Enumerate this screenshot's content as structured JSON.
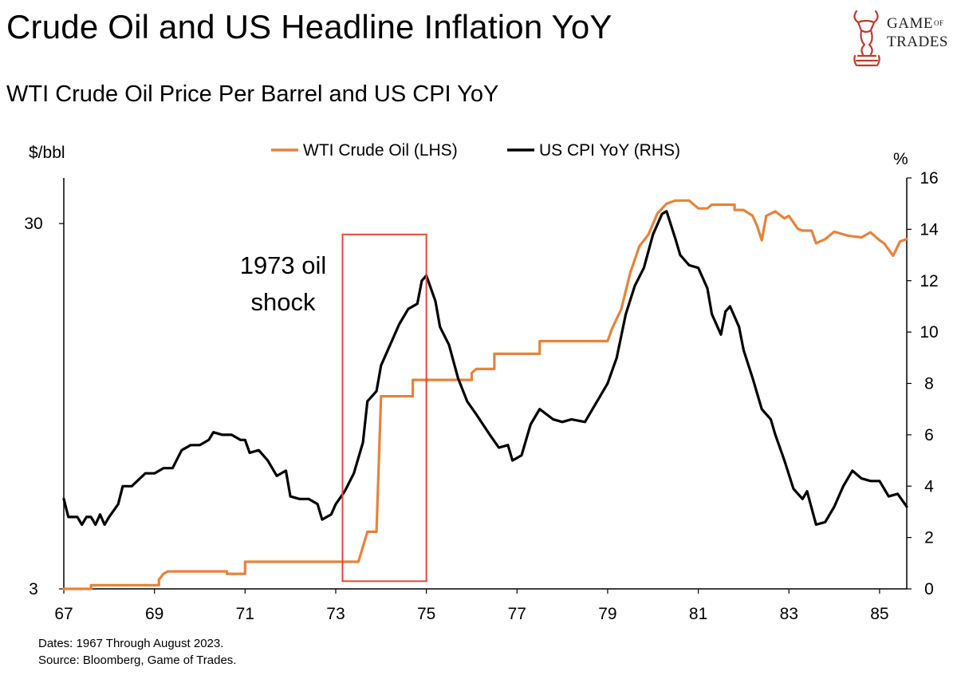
{
  "header": {
    "title": "Crude Oil and US Headline Inflation YoY",
    "subtitle": "WTI Crude Oil Price Per Barrel and US CPI YoY"
  },
  "brand": {
    "line1": "GAME",
    "of": "OF",
    "line2": "TRADES",
    "color": "#c0392b"
  },
  "footer": {
    "dates": "Dates: 1967 Through August 2023.",
    "source": "Source: Bloomberg, Game of Trades."
  },
  "chart_data": {
    "type": "line",
    "title": "Crude Oil and US Headline Inflation YoY",
    "subtitle": "WTI Crude Oil Price Per Barrel and US CPI YoY",
    "y_left_unit": "$/bbl",
    "y_right_unit": "%",
    "x_range": [
      1967,
      1985.6
    ],
    "x_ticks": [
      "67",
      "69",
      "71",
      "73",
      "75",
      "77",
      "79",
      "81",
      "83",
      "85"
    ],
    "y_left_range": [
      3,
      40
    ],
    "y_left_scale": "log",
    "y_left_ticks": [
      3,
      30
    ],
    "y_right_range": [
      0,
      16
    ],
    "y_right_ticks": [
      0,
      2,
      4,
      6,
      8,
      10,
      12,
      14,
      16
    ],
    "legend_placement": "top-center",
    "grid": false,
    "annotation": {
      "text_lines": [
        "1973 oil",
        "shock"
      ],
      "box_x": [
        1973.15,
        1975.0
      ],
      "box_right_axis_y": [
        0.3,
        13.8
      ],
      "color": "#e8463a"
    },
    "series": [
      {
        "name": "WTI Crude Oil (LHS)",
        "axis": "left",
        "color": "#e8823a",
        "points": [
          [
            1967.0,
            3.0
          ],
          [
            1967.6,
            3.0
          ],
          [
            1967.6,
            3.07
          ],
          [
            1968.3,
            3.07
          ],
          [
            1969.1,
            3.07
          ],
          [
            1969.1,
            3.18
          ],
          [
            1969.2,
            3.3
          ],
          [
            1969.3,
            3.35
          ],
          [
            1970.0,
            3.35
          ],
          [
            1970.6,
            3.35
          ],
          [
            1970.6,
            3.3
          ],
          [
            1971.0,
            3.3
          ],
          [
            1971.0,
            3.56
          ],
          [
            1971.5,
            3.56
          ],
          [
            1972.0,
            3.56
          ],
          [
            1972.5,
            3.56
          ],
          [
            1973.0,
            3.56
          ],
          [
            1973.5,
            3.56
          ],
          [
            1973.7,
            4.3
          ],
          [
            1973.9,
            4.3
          ],
          [
            1974.0,
            10.1
          ],
          [
            1974.7,
            10.1
          ],
          [
            1974.7,
            11.2
          ],
          [
            1975.5,
            11.2
          ],
          [
            1976.0,
            11.2
          ],
          [
            1976.0,
            11.7
          ],
          [
            1976.1,
            12.0
          ],
          [
            1976.5,
            12.0
          ],
          [
            1976.5,
            13.2
          ],
          [
            1977.5,
            13.2
          ],
          [
            1977.5,
            14.3
          ],
          [
            1978.3,
            14.3
          ],
          [
            1979.0,
            14.3
          ],
          [
            1979.1,
            15.5
          ],
          [
            1979.3,
            17.5
          ],
          [
            1979.5,
            22.0
          ],
          [
            1979.7,
            26.0
          ],
          [
            1979.9,
            28.0
          ],
          [
            1980.1,
            32.0
          ],
          [
            1980.3,
            34.0
          ],
          [
            1980.5,
            34.7
          ],
          [
            1980.8,
            34.7
          ],
          [
            1981.0,
            33.0
          ],
          [
            1981.2,
            33.0
          ],
          [
            1981.3,
            33.8
          ],
          [
            1981.5,
            33.8
          ],
          [
            1981.8,
            33.8
          ],
          [
            1981.8,
            32.7
          ],
          [
            1982.0,
            32.7
          ],
          [
            1982.2,
            31.5
          ],
          [
            1982.3,
            29.5
          ],
          [
            1982.4,
            27.0
          ],
          [
            1982.5,
            31.5
          ],
          [
            1982.7,
            32.4
          ],
          [
            1982.9,
            31.0
          ],
          [
            1983.0,
            31.5
          ],
          [
            1983.2,
            29.0
          ],
          [
            1983.3,
            28.7
          ],
          [
            1983.5,
            28.7
          ],
          [
            1983.6,
            26.5
          ],
          [
            1983.8,
            27.2
          ],
          [
            1984.0,
            28.5
          ],
          [
            1984.3,
            27.8
          ],
          [
            1984.6,
            27.5
          ],
          [
            1984.8,
            28.4
          ],
          [
            1985.0,
            27.0
          ],
          [
            1985.1,
            26.5
          ],
          [
            1985.3,
            24.5
          ],
          [
            1985.45,
            26.8
          ],
          [
            1985.6,
            27.2
          ]
        ]
      },
      {
        "name": "US CPI YoY (RHS)",
        "axis": "right",
        "color": "#000000",
        "points": [
          [
            1967.0,
            3.5
          ],
          [
            1967.1,
            2.8
          ],
          [
            1967.3,
            2.8
          ],
          [
            1967.4,
            2.5
          ],
          [
            1967.5,
            2.8
          ],
          [
            1967.6,
            2.8
          ],
          [
            1967.7,
            2.5
          ],
          [
            1967.8,
            2.9
          ],
          [
            1967.9,
            2.5
          ],
          [
            1968.0,
            2.8
          ],
          [
            1968.2,
            3.3
          ],
          [
            1968.3,
            4.0
          ],
          [
            1968.5,
            4.0
          ],
          [
            1968.8,
            4.5
          ],
          [
            1969.0,
            4.5
          ],
          [
            1969.2,
            4.7
          ],
          [
            1969.4,
            4.7
          ],
          [
            1969.6,
            5.4
          ],
          [
            1969.8,
            5.6
          ],
          [
            1970.0,
            5.6
          ],
          [
            1970.2,
            5.8
          ],
          [
            1970.3,
            6.1
          ],
          [
            1970.5,
            6.0
          ],
          [
            1970.7,
            6.0
          ],
          [
            1970.9,
            5.8
          ],
          [
            1971.0,
            5.8
          ],
          [
            1971.1,
            5.3
          ],
          [
            1971.3,
            5.4
          ],
          [
            1971.5,
            5.0
          ],
          [
            1971.7,
            4.4
          ],
          [
            1971.9,
            4.6
          ],
          [
            1972.0,
            3.6
          ],
          [
            1972.2,
            3.5
          ],
          [
            1972.4,
            3.5
          ],
          [
            1972.6,
            3.3
          ],
          [
            1972.7,
            2.7
          ],
          [
            1972.9,
            2.9
          ],
          [
            1973.0,
            3.3
          ],
          [
            1973.2,
            3.8
          ],
          [
            1973.4,
            4.5
          ],
          [
            1973.6,
            5.7
          ],
          [
            1973.7,
            7.3
          ],
          [
            1973.9,
            7.7
          ],
          [
            1974.0,
            8.7
          ],
          [
            1974.2,
            9.5
          ],
          [
            1974.4,
            10.3
          ],
          [
            1974.6,
            10.9
          ],
          [
            1974.8,
            11.1
          ],
          [
            1974.9,
            12.0
          ],
          [
            1975.0,
            12.2
          ],
          [
            1975.2,
            11.2
          ],
          [
            1975.3,
            10.2
          ],
          [
            1975.5,
            9.5
          ],
          [
            1975.7,
            8.2
          ],
          [
            1975.9,
            7.3
          ],
          [
            1976.1,
            6.8
          ],
          [
            1976.4,
            6.0
          ],
          [
            1976.6,
            5.5
          ],
          [
            1976.8,
            5.6
          ],
          [
            1976.9,
            5.0
          ],
          [
            1977.1,
            5.2
          ],
          [
            1977.3,
            6.4
          ],
          [
            1977.5,
            7.0
          ],
          [
            1977.8,
            6.6
          ],
          [
            1978.0,
            6.5
          ],
          [
            1978.2,
            6.6
          ],
          [
            1978.5,
            6.5
          ],
          [
            1978.8,
            7.4
          ],
          [
            1979.0,
            8.0
          ],
          [
            1979.2,
            9.0
          ],
          [
            1979.4,
            10.7
          ],
          [
            1979.6,
            11.8
          ],
          [
            1979.8,
            12.5
          ],
          [
            1980.0,
            13.8
          ],
          [
            1980.2,
            14.6
          ],
          [
            1980.3,
            14.7
          ],
          [
            1980.5,
            13.6
          ],
          [
            1980.6,
            13.0
          ],
          [
            1980.8,
            12.6
          ],
          [
            1981.0,
            12.5
          ],
          [
            1981.2,
            11.7
          ],
          [
            1981.3,
            10.7
          ],
          [
            1981.5,
            9.9
          ],
          [
            1981.6,
            10.8
          ],
          [
            1981.7,
            11.0
          ],
          [
            1981.9,
            10.2
          ],
          [
            1982.0,
            9.3
          ],
          [
            1982.2,
            8.2
          ],
          [
            1982.4,
            7.0
          ],
          [
            1982.6,
            6.6
          ],
          [
            1982.7,
            6.0
          ],
          [
            1982.9,
            5.0
          ],
          [
            1983.1,
            3.9
          ],
          [
            1983.3,
            3.5
          ],
          [
            1983.4,
            3.8
          ],
          [
            1983.6,
            2.5
          ],
          [
            1983.8,
            2.6
          ],
          [
            1984.0,
            3.2
          ],
          [
            1984.2,
            4.0
          ],
          [
            1984.4,
            4.6
          ],
          [
            1984.6,
            4.3
          ],
          [
            1984.8,
            4.2
          ],
          [
            1985.0,
            4.2
          ],
          [
            1985.2,
            3.6
          ],
          [
            1985.4,
            3.7
          ],
          [
            1985.6,
            3.2
          ]
        ]
      }
    ]
  }
}
